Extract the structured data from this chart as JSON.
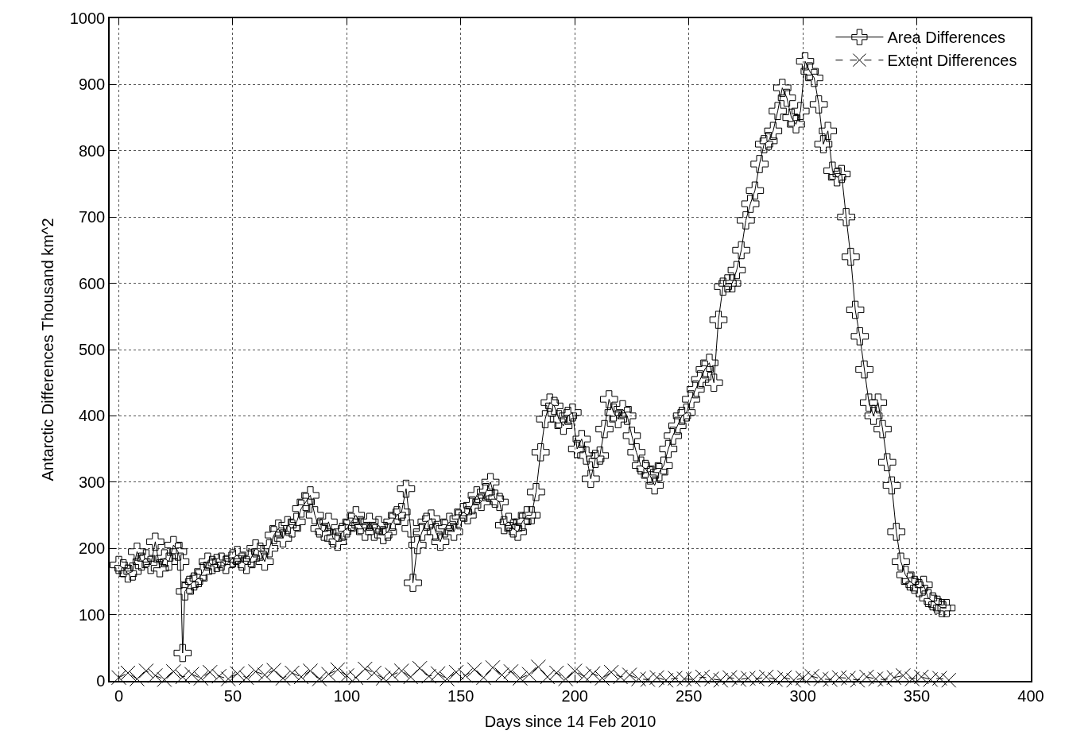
{
  "chart_data": {
    "type": "line",
    "xlabel": "Days since 14 Feb 2010",
    "ylabel": "Antarctic Differences Thousand km^2",
    "xlim": [
      -4,
      400
    ],
    "xticks": [
      0,
      50,
      100,
      150,
      200,
      250,
      300,
      350,
      400
    ],
    "ylim": [
      0,
      1000
    ],
    "yticks": [
      0,
      100,
      200,
      300,
      400,
      500,
      600,
      700,
      800,
      900,
      1000
    ],
    "grid": true,
    "legend": "top right",
    "series": [
      {
        "name": "Area Differences",
        "color": "#000000",
        "marker": "cross",
        "line_style": "solid",
        "x": [
          0,
          2,
          4,
          6,
          8,
          10,
          12,
          14,
          16,
          18,
          20,
          22,
          24,
          26,
          27,
          28,
          29,
          31,
          33,
          35,
          37,
          39,
          41,
          43,
          45,
          47,
          50,
          52,
          54,
          56,
          58,
          60,
          62,
          64,
          66,
          68,
          70,
          72,
          74,
          76,
          78,
          80,
          82,
          84,
          86,
          88,
          90,
          92,
          94,
          96,
          98,
          100,
          102,
          104,
          106,
          108,
          110,
          112,
          114,
          116,
          118,
          120,
          122,
          124,
          126,
          128,
          129,
          131,
          133,
          135,
          137,
          139,
          141,
          143,
          145,
          147,
          149,
          151,
          153,
          155,
          157,
          159,
          161,
          163,
          165,
          167,
          169,
          171,
          173,
          175,
          177,
          179,
          181,
          183,
          185,
          187,
          189,
          191,
          193,
          195,
          197,
          199,
          201,
          203,
          205,
          207,
          209,
          211,
          213,
          215,
          217,
          219,
          221,
          223,
          225,
          227,
          229,
          231,
          233,
          235,
          237,
          239,
          241,
          243,
          245,
          247,
          249,
          251,
          253,
          255,
          257,
          259,
          261,
          263,
          265,
          267,
          269,
          271,
          273,
          275,
          277,
          279,
          281,
          283,
          285,
          287,
          289,
          291,
          293,
          295,
          297,
          299,
          301,
          303,
          305,
          307,
          309,
          311,
          313,
          315,
          317,
          319,
          321,
          323,
          325,
          327,
          329,
          331,
          333,
          335,
          337,
          339,
          341,
          343,
          345,
          347,
          349,
          351,
          353,
          355,
          357,
          359,
          361,
          363
        ],
        "values": [
          175,
          170,
          162,
          165,
          195,
          180,
          185,
          175,
          210,
          170,
          185,
          180,
          205,
          195,
          180,
          42,
          135,
          145,
          150,
          155,
          165,
          180,
          175,
          178,
          180,
          175,
          185,
          190,
          180,
          175,
          185,
          200,
          195,
          180,
          200,
          220,
          230,
          215,
          235,
          230,
          240,
          260,
          270,
          280,
          250,
          230,
          225,
          240,
          215,
          210,
          225,
          230,
          240,
          250,
          235,
          225,
          240,
          225,
          235,
          220,
          225,
          240,
          250,
          255,
          290,
          230,
          148,
          205,
          225,
          240,
          245,
          225,
          210,
          230,
          240,
          225,
          245,
          255,
          250,
          265,
          280,
          270,
          285,
          300,
          275,
          270,
          235,
          240,
          230,
          225,
          240,
          250,
          250,
          285,
          345,
          395,
          420,
          415,
          395,
          385,
          400,
          405,
          350,
          365,
          340,
          305,
          335,
          340,
          380,
          425,
          405,
          395,
          410,
          400,
          370,
          345,
          325,
          320,
          310,
          295,
          315,
          325,
          350,
          370,
          385,
          400,
          405,
          425,
          440,
          455,
          470,
          480,
          450,
          545,
          595,
          600,
          600,
          620,
          650,
          695,
          720,
          740,
          780,
          810,
          815,
          830,
          860,
          895,
          880,
          850,
          840,
          860,
          935,
          920,
          910,
          870,
          810,
          830,
          770,
          760,
          765,
          700,
          640,
          560,
          520,
          470,
          420,
          400,
          420,
          380,
          330,
          295,
          225,
          180,
          160,
          150,
          145,
          140,
          145,
          125,
          120,
          115,
          110,
          110
        ]
      },
      {
        "name": "Extent Differences",
        "color": "#000000",
        "marker": "x",
        "line_style": "dashed",
        "x": [
          0,
          4,
          8,
          12,
          16,
          20,
          24,
          28,
          32,
          36,
          40,
          44,
          48,
          52,
          56,
          60,
          64,
          68,
          72,
          76,
          80,
          84,
          88,
          92,
          96,
          100,
          104,
          108,
          112,
          116,
          120,
          124,
          128,
          132,
          136,
          140,
          144,
          148,
          152,
          156,
          160,
          164,
          168,
          172,
          176,
          180,
          184,
          188,
          192,
          196,
          200,
          204,
          208,
          212,
          216,
          220,
          224,
          228,
          232,
          236,
          240,
          244,
          248,
          252,
          256,
          260,
          264,
          268,
          272,
          276,
          280,
          284,
          288,
          292,
          296,
          300,
          304,
          308,
          312,
          316,
          320,
          324,
          328,
          332,
          336,
          340,
          344,
          348,
          352,
          356,
          360,
          364
        ],
        "values": [
          5,
          12,
          3,
          15,
          8,
          2,
          14,
          6,
          10,
          4,
          13,
          7,
          3,
          11,
          5,
          14,
          9,
          16,
          4,
          12,
          6,
          15,
          3,
          10,
          17,
          8,
          5,
          18,
          12,
          4,
          9,
          15,
          6,
          19,
          7,
          11,
          3,
          13,
          8,
          17,
          5,
          20,
          9,
          14,
          4,
          10,
          21,
          6,
          12,
          3,
          15,
          7,
          11,
          4,
          13,
          6,
          9,
          3,
          2,
          5,
          1,
          4,
          3,
          2,
          6,
          3,
          1,
          5,
          2,
          4,
          3,
          6,
          2,
          5,
          1,
          4,
          7,
          3,
          2,
          5,
          4,
          1,
          6,
          3,
          2,
          5,
          8,
          3,
          6,
          2,
          4,
          1
        ]
      }
    ]
  }
}
